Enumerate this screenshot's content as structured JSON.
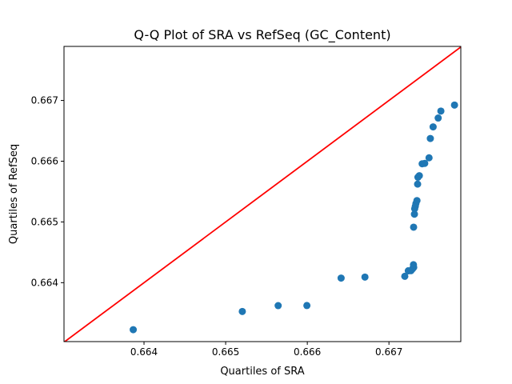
{
  "chart_data": {
    "type": "scatter",
    "title": "Q-Q Plot of SRA vs RefSeq (GC_Content)",
    "xlabel": "Quartiles of SRA",
    "ylabel": "Quartiles of RefSeq",
    "xlim": [
      0.66302,
      0.66788
    ],
    "ylim": [
      0.66303,
      0.66789
    ],
    "x_ticks": [
      {
        "value": 0.664,
        "label": "0.664"
      },
      {
        "value": 0.665,
        "label": "0.665"
      },
      {
        "value": 0.666,
        "label": "0.666"
      },
      {
        "value": 0.667,
        "label": "0.667"
      }
    ],
    "y_ticks": [
      {
        "value": 0.664,
        "label": "0.664"
      },
      {
        "value": 0.665,
        "label": "0.665"
      },
      {
        "value": 0.666,
        "label": "0.666"
      },
      {
        "value": 0.667,
        "label": "0.667"
      }
    ],
    "grid": false,
    "reference_line": {
      "slope": 1,
      "intercept": 0,
      "color": "#ff0000"
    },
    "marker_color": "#1f77b4",
    "points": [
      {
        "x": 0.663868,
        "y": 0.663226
      },
      {
        "x": 0.665204,
        "y": 0.663526
      },
      {
        "x": 0.665643,
        "y": 0.663622
      },
      {
        "x": 0.665995,
        "y": 0.663624
      },
      {
        "x": 0.666414,
        "y": 0.664076
      },
      {
        "x": 0.666706,
        "y": 0.664092
      },
      {
        "x": 0.667194,
        "y": 0.664105
      },
      {
        "x": 0.667237,
        "y": 0.664195
      },
      {
        "x": 0.66727,
        "y": 0.664198
      },
      {
        "x": 0.66729,
        "y": 0.664229
      },
      {
        "x": 0.667303,
        "y": 0.664252
      },
      {
        "x": 0.6673,
        "y": 0.664296
      },
      {
        "x": 0.667302,
        "y": 0.664914
      },
      {
        "x": 0.667312,
        "y": 0.665128
      },
      {
        "x": 0.667315,
        "y": 0.665218
      },
      {
        "x": 0.667323,
        "y": 0.665259
      },
      {
        "x": 0.66733,
        "y": 0.665303
      },
      {
        "x": 0.667343,
        "y": 0.665352
      },
      {
        "x": 0.667351,
        "y": 0.665623
      },
      {
        "x": 0.667355,
        "y": 0.665736
      },
      {
        "x": 0.667372,
        "y": 0.665762
      },
      {
        "x": 0.667407,
        "y": 0.665958
      },
      {
        "x": 0.667438,
        "y": 0.665964
      },
      {
        "x": 0.667491,
        "y": 0.666056
      },
      {
        "x": 0.667507,
        "y": 0.666374
      },
      {
        "x": 0.667541,
        "y": 0.666565
      },
      {
        "x": 0.667603,
        "y": 0.666711
      },
      {
        "x": 0.667636,
        "y": 0.666825
      },
      {
        "x": 0.667803,
        "y": 0.666924
      }
    ]
  }
}
